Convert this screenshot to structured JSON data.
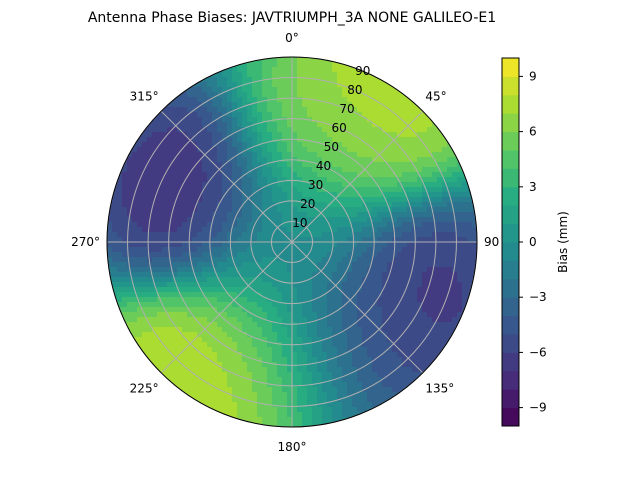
{
  "chart_data": {
    "type": "heatmap",
    "subtype": "polar-contour",
    "title": "Antenna Phase Biases: JAVTRIUMPH_3A   NONE GALILEO-E1",
    "angular_ticks": [
      {
        "deg": 0,
        "label": "0°"
      },
      {
        "deg": 45,
        "label": "45°"
      },
      {
        "deg": 90,
        "label": "90"
      },
      {
        "deg": 135,
        "label": "135°"
      },
      {
        "deg": 180,
        "label": "180°"
      },
      {
        "deg": 225,
        "label": "225°"
      },
      {
        "deg": 270,
        "label": "270°"
      },
      {
        "deg": 315,
        "label": "315°"
      }
    ],
    "radial_ticks": [
      "10",
      "20",
      "30",
      "40",
      "50",
      "60",
      "70",
      "80",
      "90"
    ],
    "radial_range": [
      0,
      90
    ],
    "grid": true,
    "colorbar": {
      "label": "Bias (mm)",
      "range": [
        -10,
        10
      ],
      "tick_values": [
        -9,
        -6,
        -3,
        0,
        3,
        6,
        9
      ],
      "tick_labels": [
        "−9",
        "−6",
        "−3",
        "0",
        "3",
        "6",
        "9"
      ],
      "colormap": [
        "#440154",
        "#472c7a",
        "#3b518b",
        "#2c718e",
        "#21908d",
        "#27ad81",
        "#5cc863",
        "#aadc32",
        "#fde725"
      ],
      "levels": 20
    },
    "features": [
      {
        "region": "high",
        "azimuth_deg": 30,
        "zenith_deg": 84,
        "bias_mm": 8.5
      },
      {
        "region": "high",
        "azimuth_deg": 18,
        "zenith_deg": 52,
        "bias_mm": 6
      },
      {
        "region": "high",
        "azimuth_deg": 215,
        "zenith_deg": 82,
        "bias_mm": 9
      },
      {
        "region": "high",
        "azimuth_deg": 195,
        "zenith_deg": 55,
        "bias_mm": 6
      },
      {
        "region": "low",
        "azimuth_deg": 297,
        "zenith_deg": 55,
        "bias_mm": -7.5
      },
      {
        "region": "low",
        "azimuth_deg": 115,
        "zenith_deg": 65,
        "bias_mm": -7
      },
      {
        "region": "low",
        "azimuth_deg": 150,
        "zenith_deg": 50,
        "bias_mm": -4.5
      },
      {
        "region": "center",
        "azimuth_deg": 0,
        "zenith_deg": 0,
        "bias_mm": 0
      }
    ]
  }
}
